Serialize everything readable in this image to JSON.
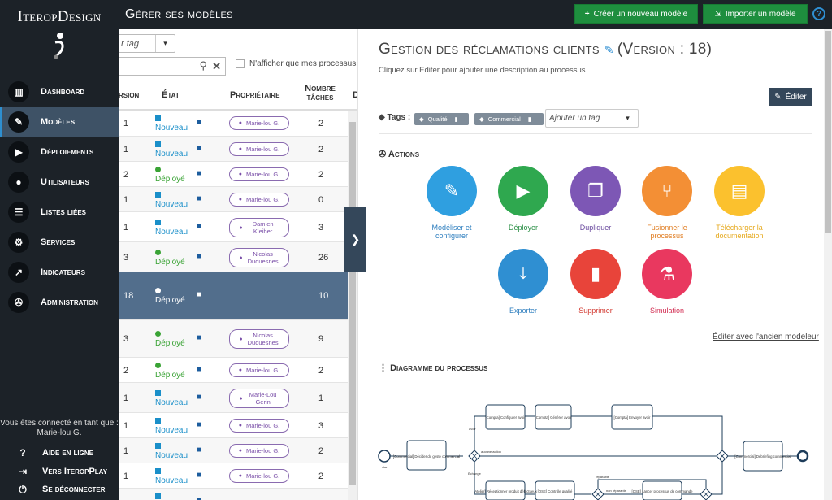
{
  "app": {
    "logo": "IteropDesign"
  },
  "sidebar": {
    "items": [
      {
        "label": "Dashboard",
        "icon": "chart-bar-icon",
        "active": false
      },
      {
        "label": "Modèles",
        "icon": "edit-icon",
        "active": true
      },
      {
        "label": "Déploiements",
        "icon": "play-icon",
        "active": false
      },
      {
        "label": "Utilisateurs",
        "icon": "user-icon",
        "active": false
      },
      {
        "label": "Listes liées",
        "icon": "list-icon",
        "active": false
      },
      {
        "label": "Services",
        "icon": "cogs-icon",
        "active": false
      },
      {
        "label": "Indicateurs",
        "icon": "line-chart-icon",
        "active": false
      },
      {
        "label": "Administration",
        "icon": "wrench-icon",
        "active": false
      }
    ],
    "connected_label": "Vous êtes connecté en tant que :",
    "connected_user": "Marie-lou G.",
    "bottom": [
      {
        "label": "Aide en ligne",
        "icon": "question-icon"
      },
      {
        "label": "Vers IteropPlay",
        "icon": "sign-in-icon"
      },
      {
        "label": "Se déconnecter",
        "icon": "power-icon"
      }
    ]
  },
  "topbar": {
    "title": "Gérer ses modèles",
    "create_label": "Créer un nouveau modèle",
    "import_label": "Importer un modèle",
    "help": "?"
  },
  "list": {
    "tag_placeholder": "r tag",
    "only_mine": "N'afficher que mes processus",
    "headers": {
      "version": "rsion",
      "state": "État",
      "owner": "Propriétaire",
      "tasks": "Nombre tâches",
      "extra": "D"
    },
    "rows": [
      {
        "version": "1",
        "state": "Nouveau",
        "state_color": "#1a8fc9",
        "state_shape": "square",
        "owner": "Marie-lou G.",
        "tasks": "2"
      },
      {
        "version": "1",
        "state": "Nouveau",
        "state_color": "#1a8fc9",
        "state_shape": "square",
        "owner": "Marie-lou G.",
        "tasks": "2"
      },
      {
        "version": "2",
        "state": "Déployé",
        "state_color": "#3aa335",
        "state_shape": "circle",
        "owner": "Marie-lou G.",
        "tasks": "2"
      },
      {
        "version": "1",
        "state": "Nouveau",
        "state_color": "#1a8fc9",
        "state_shape": "square",
        "owner": "Marie-lou G.",
        "tasks": "0"
      },
      {
        "version": "1",
        "state": "Nouveau",
        "state_color": "#1a8fc9",
        "state_shape": "square",
        "owner": "Damien Kleiber",
        "tasks": "3"
      },
      {
        "version": "3",
        "state": "Déployé",
        "state_color": "#3aa335",
        "state_shape": "circle",
        "owner": "Nicolas Duquesnes",
        "tasks": "26"
      },
      {
        "version": "18",
        "state": "Déployé",
        "state_color": "#ffffff",
        "state_shape": "circle",
        "owner": "",
        "tasks": "10",
        "selected": true
      },
      {
        "version": "3",
        "state": "Déployé",
        "state_color": "#3aa335",
        "state_shape": "circle",
        "owner": "Nicolas Duquesnes",
        "tasks": "9"
      },
      {
        "version": "2",
        "state": "Déployé",
        "state_color": "#3aa335",
        "state_shape": "circle",
        "owner": "Marie-lou G.",
        "tasks": "2"
      },
      {
        "version": "1",
        "state": "Nouveau",
        "state_color": "#1a8fc9",
        "state_shape": "square",
        "owner": "Marie-Lou Gerin",
        "tasks": "1"
      },
      {
        "version": "1",
        "state": "Nouveau",
        "state_color": "#1a8fc9",
        "state_shape": "square",
        "owner": "Marie-lou G.",
        "tasks": "3"
      },
      {
        "version": "1",
        "state": "Nouveau",
        "state_color": "#1a8fc9",
        "state_shape": "square",
        "owner": "Marie-lou G.",
        "tasks": "2"
      },
      {
        "version": "1",
        "state": "Nouveau",
        "state_color": "#1a8fc9",
        "state_shape": "square",
        "owner": "Marie-lou G.",
        "tasks": "2"
      },
      {
        "version": "",
        "state": "",
        "state_color": "#1a8fc9",
        "state_shape": "square",
        "owner": "",
        "tasks": ""
      }
    ]
  },
  "detail": {
    "title": "Gestion des réclamations clients",
    "version": "(Version : 18)",
    "description": "Cliquez sur Editer pour ajouter une description au processus.",
    "edit_label": "Éditer",
    "tags_label": "Tags :",
    "tags": [
      "Qualité",
      "Commercial"
    ],
    "add_tag_placeholder": "Ajouter un tag",
    "actions_title": "Actions",
    "actions": [
      {
        "label": "Modéliser et configurer",
        "color": "#2f9fe0",
        "icon": "edit-icon"
      },
      {
        "label": "Déployer",
        "color": "#2fa84f",
        "icon": "play-icon"
      },
      {
        "label": "Dupliquer",
        "color": "#7d57b5",
        "icon": "copy-icon"
      },
      {
        "label": "Fusionner le processus",
        "color": "#f38f35",
        "icon": "code-fork-icon"
      },
      {
        "label": "Télécharger la documentation",
        "color": "#fbc12e",
        "icon": "book-icon"
      },
      {
        "label": "Exporter",
        "color": "#2f8fd2",
        "icon": "download-icon"
      },
      {
        "label": "Supprimer",
        "color": "#e8443a",
        "icon": "trash-icon"
      },
      {
        "label": "Simulation",
        "color": "#e9385f",
        "icon": "flask-icon"
      }
    ],
    "old_editor": "Éditer avec l'ancien modeleur",
    "diagram_title": "Diagramme du processus",
    "diagram": {
      "start": "start",
      "tasks": [
        {
          "id": "t1",
          "label": "[Commercial] Décider du geste commercial"
        },
        {
          "id": "t2",
          "label": "[Compta] Configurer avoir"
        },
        {
          "id": "t3",
          "label": "[Compta] Générer avoir"
        },
        {
          "id": "t4",
          "label": "[Compta] Envoyer avoir"
        },
        {
          "id": "t5",
          "label": "[Atelier] Réceptionner produit défectueux"
        },
        {
          "id": "t6",
          "label": "[QSE] Contrôle qualité"
        },
        {
          "id": "t7",
          "label": "[QSE] Lancer processus de commande"
        },
        {
          "id": "t8",
          "label": "[Commercial] Débriefing commercial"
        }
      ],
      "edge_labels": [
        "avoir",
        "aucune action",
        "Échange",
        "non réparable",
        "réparable"
      ]
    }
  }
}
